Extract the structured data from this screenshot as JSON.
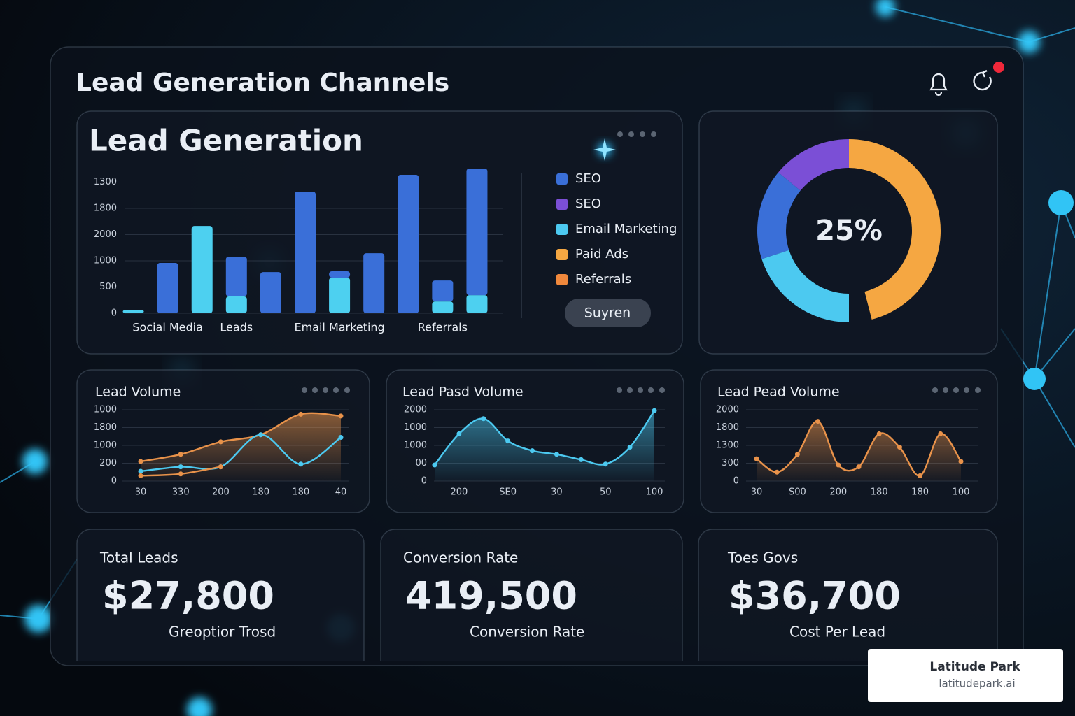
{
  "header": {
    "title": "Lead Generation Channels"
  },
  "chart_data": [
    {
      "type": "bar",
      "title": "Lead Generation",
      "categories": [
        null,
        "Social Media",
        null,
        "Leads",
        null,
        null,
        "Email Marketing",
        null,
        null,
        "Referrals",
        null
      ],
      "series": [
        {
          "color": "#4dd0f0",
          "values": [
            0.13,
            null,
            3.33,
            0.64,
            null,
            null,
            1.36,
            null,
            null,
            0.45,
            0.69
          ]
        },
        {
          "color": "#3a6fd8",
          "values": [
            null,
            1.92,
            null,
            1.52,
            1.57,
            4.64,
            0.24,
            2.29,
            5.28,
            0.8,
            4.83
          ]
        }
      ],
      "stacked": true,
      "ylim": [
        0,
        5.6
      ],
      "yticks": [
        0,
        {
          "value": 1,
          "label": "500"
        },
        {
          "value": 2,
          "label": "1000"
        },
        {
          "value": 3,
          "label": "2000"
        },
        {
          "value": 4,
          "label": "1800"
        },
        {
          "value": 5,
          "label": "1300"
        }
      ],
      "grid": true,
      "legend": [
        {
          "name": "SEO",
          "color": "#3a6fd8"
        },
        {
          "name": "SEO",
          "color": "#7b4fd6"
        },
        {
          "name": "Email Marketing",
          "color": "#4cc9f0"
        },
        {
          "name": "Paid Ads",
          "color": "#f5a742"
        },
        {
          "name": "Referrals",
          "color": "#f0883c"
        }
      ],
      "button": "Suyren"
    },
    {
      "type": "pie",
      "values": [
        46,
        20,
        16,
        14
      ],
      "colors": [
        "#f5a742",
        "#4cc9f0",
        "#3a6fd8",
        "#7b4fd6"
      ],
      "center_label": "25%"
    },
    {
      "type": "line",
      "title": "Lead Volume",
      "categories": [
        "30",
        "330",
        "200",
        "180",
        "180",
        "40"
      ],
      "series": [
        {
          "color": "#e8924a",
          "area": true,
          "values": [
            1.1,
            1.5,
            2.2,
            2.6,
            3.75,
            3.65
          ]
        },
        {
          "color": "#4cc9f0",
          "area": false,
          "values": [
            0.55,
            0.8,
            0.8,
            2.6,
            0.95,
            2.45
          ]
        },
        {
          "color": "#e8924a",
          "area": false,
          "values": [
            0.3,
            0.4,
            0.8,
            null,
            null,
            null
          ]
        }
      ],
      "ylim": [
        0,
        4
      ],
      "yticks": [
        0,
        {
          "value": 1,
          "label": "200"
        },
        {
          "value": 2,
          "label": "1000"
        },
        {
          "value": 3,
          "label": "1800"
        },
        {
          "value": 4,
          "label": "1000"
        }
      ],
      "grid": true
    },
    {
      "type": "line",
      "title": "Lead Pasd Volume",
      "categories": [
        null,
        "200",
        null,
        "SE0",
        null,
        "30",
        null,
        "50",
        null,
        "100"
      ],
      "series": [
        {
          "color": "#4cc9f0",
          "area": true,
          "values": [
            0.9,
            2.65,
            3.5,
            2.25,
            1.7,
            1.5,
            1.2,
            0.95,
            1.9,
            3.95
          ]
        }
      ],
      "ylim": [
        0,
        4
      ],
      "yticks": [
        0,
        {
          "value": 1,
          "label": "00"
        },
        {
          "value": 2,
          "label": "1000"
        },
        {
          "value": 3,
          "label": "1000"
        },
        {
          "value": 4,
          "label": "2000"
        }
      ],
      "grid": true
    },
    {
      "type": "line",
      "title": "Lead Pead Volume",
      "categories": [
        "30",
        null,
        "S00",
        null,
        "200",
        null,
        "180",
        null,
        "180",
        null,
        "100"
      ],
      "series": [
        {
          "color": "#e8924a",
          "area": true,
          "values": [
            1.25,
            0.5,
            1.5,
            3.35,
            0.9,
            0.8,
            2.65,
            1.9,
            0.3,
            2.65,
            1.1
          ]
        }
      ],
      "ylim": [
        0,
        4
      ],
      "yticks": [
        0,
        {
          "value": 1,
          "label": "300"
        },
        {
          "value": 2,
          "label": "1300"
        },
        {
          "value": 3,
          "label": "1800"
        },
        {
          "value": 4,
          "label": "2000"
        }
      ],
      "grid": true
    }
  ],
  "kpis": [
    {
      "title": "Total Leads",
      "value": "$27,800",
      "caption": "Greoptior Trosd"
    },
    {
      "title": "Conversion Rate",
      "value": "419,500",
      "caption": "Conversion Rate"
    },
    {
      "title": "Toes Govs",
      "value": "$36,700",
      "caption": "Cost Per Lead"
    }
  ],
  "badge": {
    "name": "Latitude Park",
    "url": "latitudepark.ai"
  }
}
